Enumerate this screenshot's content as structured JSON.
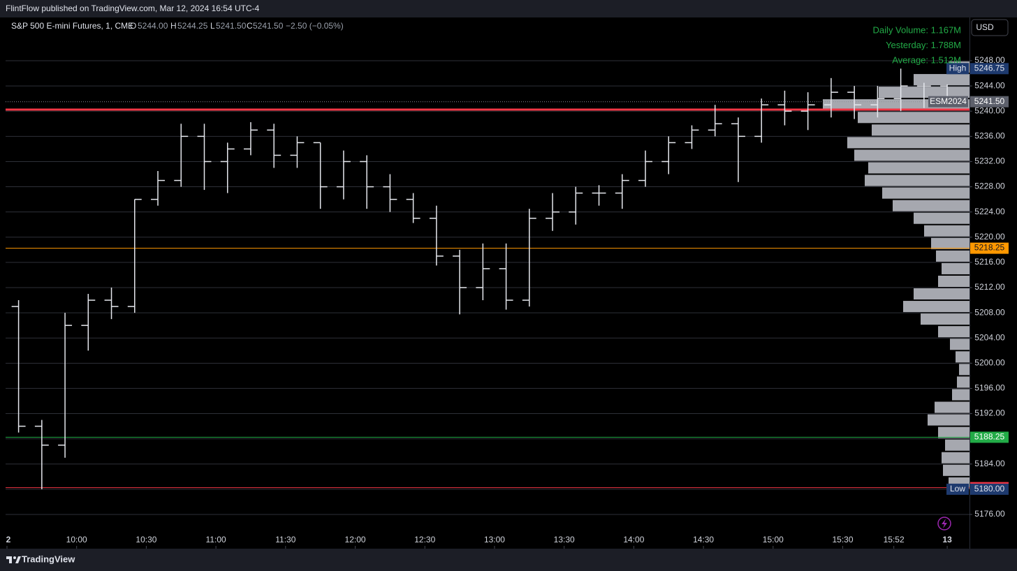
{
  "header": {
    "published": "FlintFlow published on TradingView.com, Mar 12, 2024 16:54 UTC-4"
  },
  "legend": {
    "symbol": "S&P 500 E-mini Futures, 1, CME",
    "open_label": "O",
    "open": "5244.00",
    "high_label": "H",
    "high": "5244.25",
    "low_label": "L",
    "low": "5241.50",
    "close_label": "C",
    "close": "5241.50",
    "change": "−2.50 (−0.05%)"
  },
  "toolbar": {
    "currency": "USD"
  },
  "footer": {
    "brand": "TradingView"
  },
  "chart_data": {
    "type": "ohlc",
    "color": "#e6e8ee",
    "annotations": [
      "Daily Volume: 1.167M",
      "Yesterday: 1.788M",
      "Average: 1.512M"
    ],
    "annotation_color": "#22ab47",
    "x": [
      570,
      580,
      590,
      600,
      610,
      620,
      630,
      640,
      650,
      660,
      670,
      680,
      690,
      700,
      710,
      720,
      730,
      740,
      750,
      760,
      770,
      780,
      790,
      800,
      810,
      820,
      830,
      840,
      850,
      860,
      870,
      880,
      890,
      900,
      910,
      920,
      930,
      940,
      950,
      960,
      970
    ],
    "open": [
      5209,
      5190,
      5187,
      5206,
      5210,
      5209,
      5226,
      5229,
      5236,
      5232,
      5234,
      5237,
      5233,
      5235,
      5228,
      5232,
      5228,
      5226,
      5223,
      5217,
      5212,
      5215,
      5210,
      5223,
      5224,
      5227,
      5227,
      5229,
      5232,
      5235,
      5237,
      5238,
      5236,
      5241,
      5240,
      5241,
      5243,
      5241,
      5242,
      5244,
      5244
    ],
    "high": [
      5210,
      5191,
      5208,
      5211,
      5212,
      5226,
      5230.5,
      5238,
      5238,
      5235,
      5238.25,
      5238,
      5236,
      5235,
      5233.75,
      5233,
      5230,
      5227,
      5225,
      5218,
      5219,
      5219,
      5224.5,
      5227,
      5228,
      5228.25,
      5230,
      5233.75,
      5236,
      5237.75,
      5241,
      5239,
      5242,
      5243.25,
      5243,
      5245.25,
      5244,
      5244,
      5246.75,
      5244.5,
      5244.25
    ],
    "low": [
      5189,
      5180,
      5185,
      5202,
      5207,
      5208,
      5225,
      5228,
      5227.5,
      5227,
      5233,
      5231,
      5231,
      5224.5,
      5226,
      5224.5,
      5224,
      5222.25,
      5215.5,
      5207.75,
      5210,
      5208.5,
      5209,
      5221,
      5222,
      5225,
      5224.5,
      5228,
      5230,
      5234,
      5236,
      5228.75,
      5235,
      5237.75,
      5237,
      5239,
      5238.75,
      5239,
      5240,
      5240.5,
      5241.5
    ],
    "close": [
      5190,
      5187,
      5206,
      5210,
      5209,
      5226,
      5229,
      5236,
      5232,
      5234,
      5237,
      5233,
      5235,
      5228,
      5232,
      5228,
      5226,
      5223,
      5217,
      5212,
      5215,
      5210,
      5223,
      5224,
      5227,
      5227,
      5229,
      5232,
      5235,
      5237,
      5238,
      5236,
      5241,
      5240,
      5241,
      5243,
      5241,
      5242,
      5244,
      5244,
      5241.5
    ],
    "xlim": [
      568.5,
      984.6
    ],
    "ylim": [
      5170.68,
      5254.87
    ],
    "xticks": [
      {
        "value": 570,
        "label": "2"
      },
      {
        "value": 600,
        "label": "10:00"
      },
      {
        "value": 630,
        "label": "10:30"
      },
      {
        "value": 660,
        "label": "11:00"
      },
      {
        "value": 690,
        "label": "11:30"
      },
      {
        "value": 720,
        "label": "12:00"
      },
      {
        "value": 750,
        "label": "12:30"
      },
      {
        "value": 780,
        "label": "13:00"
      },
      {
        "value": 810,
        "label": "13:30"
      },
      {
        "value": 840,
        "label": "14:00"
      },
      {
        "value": 870,
        "label": "14:30"
      },
      {
        "value": 900,
        "label": "15:00"
      },
      {
        "value": 930,
        "label": "15:30"
      },
      {
        "value": 952,
        "label": "15:52"
      },
      {
        "value": 975,
        "label": "13"
      }
    ],
    "yticks": [
      {
        "value": 5176,
        "label": "5176.00"
      },
      {
        "value": 5180,
        "label": "5180.00"
      },
      {
        "value": 5184,
        "label": "5184.00"
      },
      {
        "value": 5188,
        "label": "5188.00"
      },
      {
        "value": 5192,
        "label": "5192.00"
      },
      {
        "value": 5196,
        "label": "5196.00"
      },
      {
        "value": 5200,
        "label": "5200.00"
      },
      {
        "value": 5204,
        "label": "5204.00"
      },
      {
        "value": 5208,
        "label": "5208.00"
      },
      {
        "value": 5212,
        "label": "5212.00"
      },
      {
        "value": 5216,
        "label": "5216.00"
      },
      {
        "value": 5220,
        "label": "5220.00"
      },
      {
        "value": 5224,
        "label": "5224.00"
      },
      {
        "value": 5228,
        "label": "5228.00"
      },
      {
        "value": 5232,
        "label": "5232.00"
      },
      {
        "value": 5236,
        "label": "5236.00"
      },
      {
        "value": 5240,
        "label": "5240.00"
      },
      {
        "value": 5244,
        "label": "5244.00"
      },
      {
        "value": 5248,
        "label": "5248.00"
      }
    ],
    "grid": "horizontal",
    "levels": [
      {
        "value": 5240.25,
        "color": "#f23645",
        "width": 3,
        "show_label": false
      },
      {
        "value": 5218.25,
        "color": "#ff9800",
        "width": 1,
        "show_label": true,
        "label_color": "#131722"
      },
      {
        "value": 5188.25,
        "color": "#22ab47",
        "width": 1,
        "show_label": true,
        "label_color": "#ffffff"
      },
      {
        "value": 5180.25,
        "color": "#f23645",
        "width": 1,
        "show_label": true,
        "label_color": "#ffffff"
      }
    ],
    "current_price": {
      "name": "ESM2024",
      "value": 5241.5,
      "value_label": "5241.50",
      "color": "#5d606b"
    },
    "markers": [
      {
        "name": "High",
        "value": 5246.75,
        "color": "#1e3a6e"
      },
      {
        "name": "Low",
        "value": 5180,
        "value_label": "5180.00",
        "color": "#1e3a6e"
      }
    ],
    "volume_profile": {
      "color": "#c3c6ce",
      "bins": [
        5180,
        5182,
        5184,
        5186,
        5188,
        5190,
        5192,
        5194,
        5196,
        5198,
        5200,
        5202,
        5204,
        5206,
        5208,
        5210,
        5212,
        5214,
        5216,
        5218,
        5220,
        5222,
        5224,
        5226,
        5228,
        5230,
        5232,
        5234,
        5236,
        5238,
        5240,
        5242,
        5244,
        5246,
        5248
      ],
      "values": [
        30,
        38,
        40,
        35,
        45,
        60,
        50,
        25,
        18,
        15,
        20,
        28,
        45,
        70,
        95,
        80,
        45,
        40,
        48,
        55,
        65,
        80,
        110,
        125,
        150,
        145,
        165,
        175,
        140,
        160,
        210,
        130,
        80,
        30
      ]
    }
  }
}
